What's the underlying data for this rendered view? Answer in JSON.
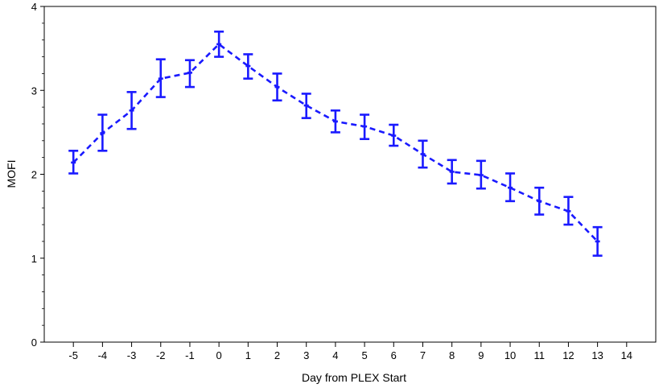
{
  "chart_data": {
    "type": "line",
    "title": "",
    "xlabel": "Day from PLEX Start",
    "ylabel": "MOFI",
    "xlim": [
      -6,
      15
    ],
    "ylim": [
      0,
      4
    ],
    "x_ticks": [
      -5,
      -4,
      -3,
      -2,
      -1,
      0,
      1,
      2,
      3,
      4,
      5,
      6,
      7,
      8,
      9,
      10,
      11,
      12,
      13,
      14
    ],
    "y_ticks": [
      0,
      1,
      2,
      3,
      4
    ],
    "grid": false,
    "legend": "none",
    "line_style": "dashed",
    "color": "#1a1aff",
    "series": [
      {
        "x": [
          -5,
          -4,
          -3,
          -2,
          -1,
          0,
          1,
          2,
          3,
          4,
          5,
          6,
          7,
          8,
          9,
          10,
          11,
          12,
          13
        ],
        "y": [
          2.14,
          2.49,
          2.76,
          3.14,
          3.21,
          3.55,
          3.29,
          3.04,
          2.82,
          2.63,
          2.57,
          2.46,
          2.24,
          2.03,
          1.99,
          1.84,
          1.68,
          1.56,
          1.2
        ],
        "lower": [
          2.01,
          2.28,
          2.54,
          2.92,
          3.04,
          3.4,
          3.14,
          2.88,
          2.67,
          2.5,
          2.42,
          2.34,
          2.08,
          1.89,
          1.83,
          1.68,
          1.52,
          1.4,
          1.03
        ],
        "upper": [
          2.28,
          2.71,
          2.98,
          3.37,
          3.36,
          3.7,
          3.43,
          3.2,
          2.96,
          2.76,
          2.71,
          2.59,
          2.4,
          2.17,
          2.16,
          2.01,
          1.84,
          1.73,
          1.37
        ]
      }
    ]
  }
}
